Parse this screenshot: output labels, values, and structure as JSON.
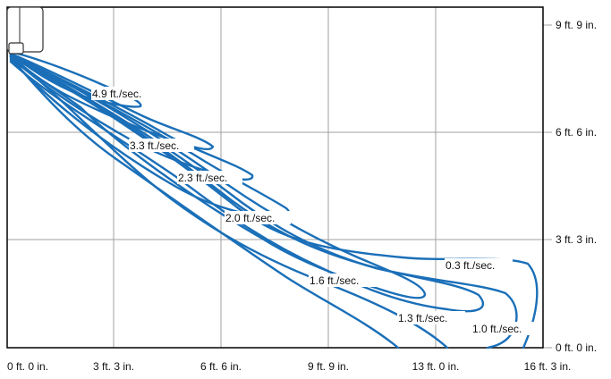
{
  "x_axis_ticks": [
    "0 ft. 0 in.",
    "3 ft. 3 in.",
    "6 ft. 6 in.",
    "9 ft. 9 in.",
    "13 ft. 0 in.",
    "16 ft. 3 in."
  ],
  "y_axis_ticks": [
    "0 ft. 0 in.",
    "3 ft. 3 in.",
    "6 ft. 6 in.",
    "9 ft. 9 in."
  ],
  "speed_labels": [
    "4.9 ft./sec.",
    "3.3 ft./sec.",
    "2.3 ft./sec.",
    "2.0 ft./sec.",
    "1.6 ft./sec.",
    "1.3 ft./sec.",
    "1.0 ft./sec.",
    "0.3 ft./sec."
  ],
  "colors": {
    "contour": "#1a6fb8",
    "grid": "#a0a0a0",
    "axis": "#000000"
  }
}
